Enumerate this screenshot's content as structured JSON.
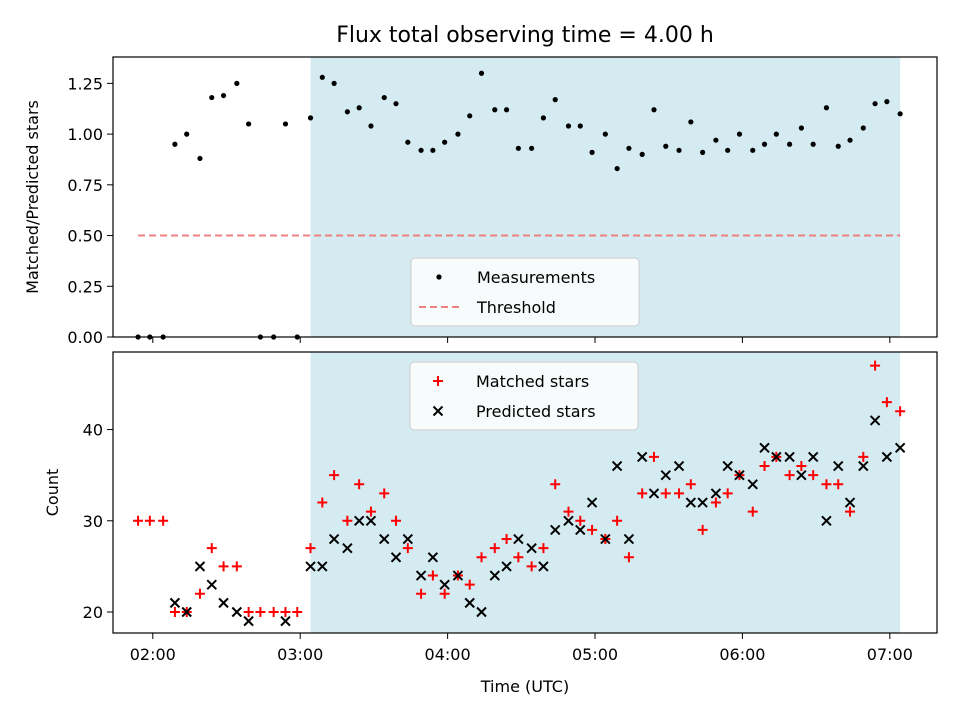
{
  "figure": {
    "title": "Flux total observing time = 4.00 h"
  },
  "chart_data": [
    {
      "type": "scatter",
      "ylabel": "Matched/Predicted stars",
      "xlim": [
        1.73,
        7.32
      ],
      "ylim": [
        0.0,
        1.38
      ],
      "yticks": [
        0.0,
        0.25,
        0.5,
        0.75,
        1.0,
        1.25
      ],
      "ytick_labels": [
        "0.00",
        "0.25",
        "0.50",
        "0.75",
        "1.00",
        "1.25"
      ],
      "shaded_span": [
        3.07,
        7.07
      ],
      "shade_color": "#d4ebf1",
      "legend": {
        "placement": "lower-center",
        "entries": [
          "Measurements",
          "Threshold"
        ]
      },
      "series": [
        {
          "name": "Measurements",
          "marker": "dot",
          "color": "#000000",
          "x": [
            1.9,
            1.98,
            2.07,
            2.15,
            2.23,
            2.32,
            2.4,
            2.48,
            2.57,
            2.65,
            2.73,
            2.82,
            2.9,
            2.98,
            3.07,
            3.15,
            3.23,
            3.32,
            3.4,
            3.48,
            3.57,
            3.65,
            3.73,
            3.82,
            3.9,
            3.98,
            4.07,
            4.15,
            4.23,
            4.32,
            4.4,
            4.48,
            4.57,
            4.65,
            4.73,
            4.82,
            4.9,
            4.98,
            5.07,
            5.15,
            5.23,
            5.32,
            5.4,
            5.48,
            5.57,
            5.65,
            5.73,
            5.82,
            5.9,
            5.98,
            6.07,
            6.15,
            6.23,
            6.32,
            6.4,
            6.48,
            6.57,
            6.65,
            6.73,
            6.82,
            6.9,
            6.98,
            7.07
          ],
          "y": [
            0.0,
            0.0,
            0.0,
            0.95,
            1.0,
            0.88,
            1.18,
            1.19,
            1.25,
            1.05,
            0.0,
            0.0,
            1.05,
            0.0,
            1.08,
            1.28,
            1.25,
            1.11,
            1.13,
            1.04,
            1.18,
            1.15,
            0.96,
            0.92,
            0.92,
            0.96,
            1.0,
            1.09,
            1.3,
            1.12,
            1.12,
            0.93,
            0.93,
            1.08,
            1.17,
            1.04,
            1.04,
            0.91,
            1.0,
            0.83,
            0.93,
            0.9,
            1.12,
            0.94,
            0.92,
            1.06,
            0.91,
            0.97,
            0.92,
            1.0,
            0.92,
            0.95,
            1.0,
            0.95,
            1.03,
            0.95,
            1.13,
            0.94,
            0.97,
            1.03,
            1.15,
            1.16,
            1.1
          ]
        },
        {
          "name": "Threshold",
          "marker": "dashed-line",
          "color": "#f08080",
          "x": [
            1.9,
            7.07
          ],
          "y": [
            0.5,
            0.5
          ]
        }
      ]
    },
    {
      "type": "scatter",
      "xlabel": "Time (UTC)",
      "ylabel": "Count",
      "xlim": [
        1.73,
        7.32
      ],
      "ylim": [
        17.7,
        48.5
      ],
      "xticks": [
        2,
        3,
        4,
        5,
        6,
        7
      ],
      "xtick_labels": [
        "02:00",
        "03:00",
        "04:00",
        "05:00",
        "06:00",
        "07:00"
      ],
      "yticks": [
        20,
        30,
        40
      ],
      "ytick_labels": [
        "20",
        "30",
        "40"
      ],
      "shaded_span": [
        3.07,
        7.07
      ],
      "shade_color": "#d4ebf1",
      "legend": {
        "placement": "upper-center",
        "entries": [
          "Matched stars",
          "Predicted stars"
        ]
      },
      "series": [
        {
          "name": "Matched stars",
          "marker": "plus",
          "color": "#ff0000",
          "x": [
            1.9,
            1.98,
            2.07,
            2.15,
            2.23,
            2.32,
            2.4,
            2.48,
            2.57,
            2.65,
            2.73,
            2.82,
            2.9,
            2.98,
            3.07,
            3.15,
            3.23,
            3.32,
            3.4,
            3.48,
            3.57,
            3.65,
            3.73,
            3.82,
            3.9,
            3.98,
            4.07,
            4.15,
            4.23,
            4.32,
            4.4,
            4.48,
            4.57,
            4.65,
            4.73,
            4.82,
            4.9,
            4.98,
            5.07,
            5.15,
            5.23,
            5.32,
            5.4,
            5.48,
            5.57,
            5.65,
            5.73,
            5.82,
            5.9,
            5.98,
            6.07,
            6.15,
            6.23,
            6.32,
            6.4,
            6.48,
            6.57,
            6.65,
            6.73,
            6.82,
            6.9,
            6.98,
            7.07
          ],
          "y": [
            30,
            30,
            30,
            20,
            20,
            22,
            27,
            25,
            25,
            20,
            20,
            20,
            20,
            20,
            27,
            32,
            35,
            30,
            34,
            31,
            33,
            30,
            27,
            22,
            24,
            22,
            24,
            23,
            26,
            27,
            28,
            26,
            25,
            27,
            34,
            31,
            30,
            29,
            28,
            30,
            26,
            33,
            37,
            33,
            33,
            34,
            29,
            32,
            33,
            35,
            31,
            36,
            37,
            35,
            36,
            35,
            34,
            34,
            31,
            37,
            47,
            43,
            42
          ]
        },
        {
          "name": "Predicted stars",
          "marker": "x",
          "color": "#000000",
          "x": [
            2.15,
            2.23,
            2.32,
            2.4,
            2.48,
            2.57,
            2.65,
            2.9,
            3.07,
            3.15,
            3.23,
            3.32,
            3.4,
            3.48,
            3.57,
            3.65,
            3.73,
            3.82,
            3.9,
            3.98,
            4.07,
            4.15,
            4.23,
            4.32,
            4.4,
            4.48,
            4.57,
            4.65,
            4.73,
            4.82,
            4.9,
            4.98,
            5.07,
            5.15,
            5.23,
            5.32,
            5.4,
            5.48,
            5.57,
            5.65,
            5.73,
            5.82,
            5.9,
            5.98,
            6.07,
            6.15,
            6.23,
            6.32,
            6.4,
            6.48,
            6.57,
            6.65,
            6.73,
            6.82,
            6.9,
            6.98,
            7.07
          ],
          "y": [
            21,
            20,
            25,
            23,
            21,
            20,
            19,
            19,
            25,
            25,
            28,
            27,
            30,
            30,
            28,
            26,
            28,
            24,
            26,
            23,
            24,
            21,
            20,
            24,
            25,
            28,
            27,
            25,
            29,
            30,
            29,
            32,
            28,
            36,
            28,
            37,
            33,
            35,
            36,
            32,
            32,
            33,
            36,
            35,
            34,
            38,
            37,
            37,
            35,
            37,
            30,
            36,
            32,
            36,
            41,
            37,
            38
          ]
        }
      ]
    }
  ]
}
